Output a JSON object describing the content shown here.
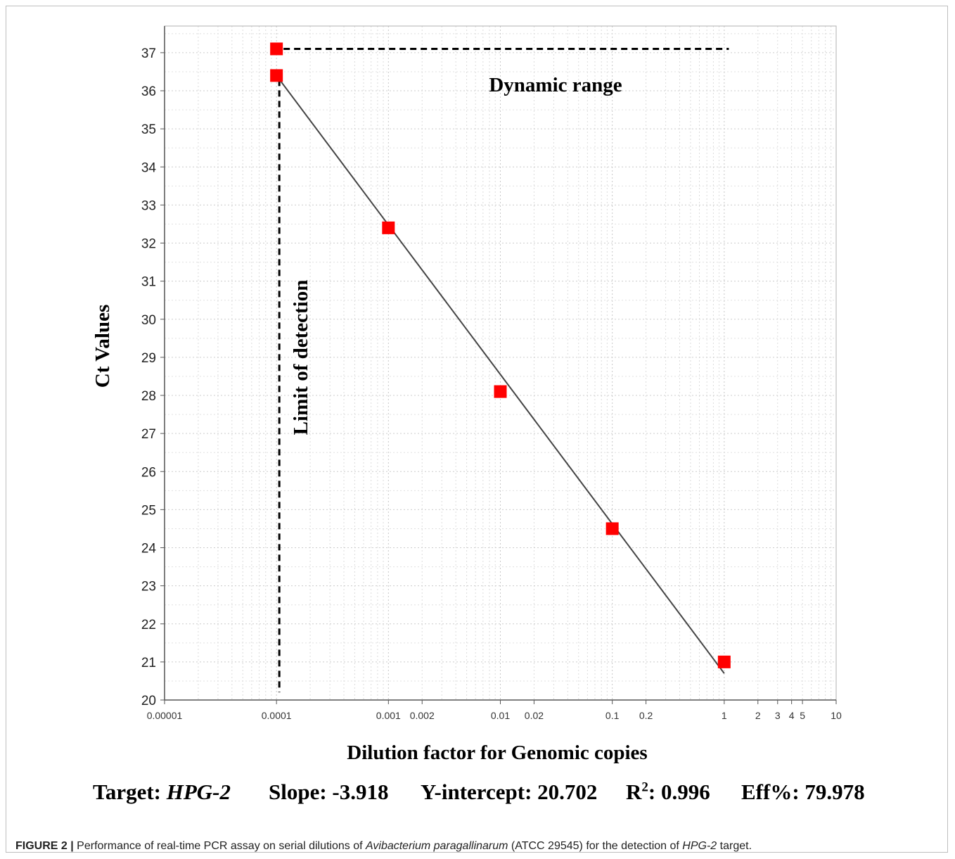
{
  "chart_data": {
    "type": "scatter",
    "title": "",
    "xlabel": "Dilution factor for Genomic copies",
    "ylabel": "Ct Values",
    "x_scale": "log",
    "xlim": [
      1e-05,
      10
    ],
    "ylim": [
      20,
      37.7
    ],
    "grid": true,
    "x_ticks": [
      {
        "value": 1e-05,
        "label": "0.00001"
      },
      {
        "value": 0.0001,
        "label": "0.0001"
      },
      {
        "value": 0.001,
        "label": "0.001"
      },
      {
        "value": 0.002,
        "label": "0.002"
      },
      {
        "value": 0.01,
        "label": "0.01"
      },
      {
        "value": 0.02,
        "label": "0.02"
      },
      {
        "value": 0.1,
        "label": "0.1"
      },
      {
        "value": 0.2,
        "label": "0.2"
      },
      {
        "value": 1,
        "label": "1"
      },
      {
        "value": 2,
        "label": "2"
      },
      {
        "value": 3,
        "label": "3"
      },
      {
        "value": 4,
        "label": "4"
      },
      {
        "value": 5,
        "label": "5"
      },
      {
        "value": 10,
        "label": "10"
      }
    ],
    "y_ticks": [
      "20",
      "21",
      "22",
      "23",
      "24",
      "25",
      "26",
      "27",
      "28",
      "29",
      "30",
      "31",
      "32",
      "33",
      "34",
      "35",
      "36",
      "37"
    ],
    "series": [
      {
        "color": "#ff0000",
        "points": [
          {
            "x": 0.0001,
            "y": 37.1
          },
          {
            "x": 0.0001,
            "y": 36.4
          },
          {
            "x": 0.001,
            "y": 32.4
          },
          {
            "x": 0.01,
            "y": 28.1
          },
          {
            "x": 0.1,
            "y": 24.5
          },
          {
            "x": 1,
            "y": 21.0
          }
        ]
      }
    ],
    "regression_line": {
      "x_start": 0.0001,
      "y_start": 36.4,
      "x_end": 1,
      "y_end": 20.7,
      "color": "#444444"
    },
    "annotations": [
      {
        "text": "Dynamic range",
        "style": "horizontal dashed line",
        "x_start": 0.0001,
        "x_end": 1.1,
        "y": 37.1
      },
      {
        "text": "Limit of detection",
        "style": "vertical dashed line",
        "x": 0.0001,
        "y_start": 20.2,
        "y_end": 36.4
      }
    ]
  },
  "stats": {
    "target_label": "Target: ",
    "target_value": "HPG-2",
    "slope": "Slope: -3.918",
    "intercept": "Y-intercept: 20.702",
    "r2_prefix": "R",
    "r2_sup": "2",
    "r2_value": ": 0.996",
    "efficiency": "Eff%: 79.978"
  },
  "caption": {
    "label": "FIGURE 2 |",
    "text_1": " Performance of real-time PCR assay on serial dilutions of ",
    "organism": "Avibacterium paragallinarum",
    "text_2": " (ATCC 29545) for the detection of ",
    "target": "HPG-2",
    "text_3": " target."
  }
}
